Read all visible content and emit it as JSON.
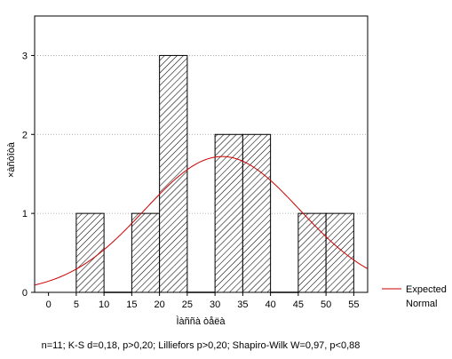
{
  "chart_data": {
    "type": "bar",
    "subtype": "histogram-with-normal-fit",
    "xlabel": "Ìàññà òåëà",
    "ylabel": "×àñòîòà",
    "xlim": [
      -2.5,
      57.5
    ],
    "ylim": [
      0,
      3.5
    ],
    "x_ticks": [
      0,
      5,
      10,
      15,
      20,
      25,
      30,
      35,
      40,
      45,
      50,
      55
    ],
    "y_ticks": [
      0,
      1,
      2,
      3
    ],
    "grid": "dotted-horizontal",
    "bins": [
      {
        "from": 5,
        "to": 10,
        "count": 1
      },
      {
        "from": 10,
        "to": 15,
        "count": 0
      },
      {
        "from": 15,
        "to": 20,
        "count": 1
      },
      {
        "from": 20,
        "to": 25,
        "count": 3
      },
      {
        "from": 25,
        "to": 30,
        "count": 0
      },
      {
        "from": 30,
        "to": 35,
        "count": 2
      },
      {
        "from": 35,
        "to": 40,
        "count": 2
      },
      {
        "from": 40,
        "to": 45,
        "count": 0
      },
      {
        "from": 45,
        "to": 50,
        "count": 1
      },
      {
        "from": 50,
        "to": 55,
        "count": 1
      }
    ],
    "curve": {
      "name": "Expected Normal",
      "color": "#cc0000",
      "mean": 31.3,
      "sd": 14.0,
      "peak": 1.72
    },
    "legend": {
      "position": "right",
      "line1": "Expected",
      "line2": "Normal"
    },
    "stats": "n=11; K-S d=0,18, p>0,20; Lilliefors p>0,20; Shapiro-Wilk W=0,97, p<0,88"
  }
}
